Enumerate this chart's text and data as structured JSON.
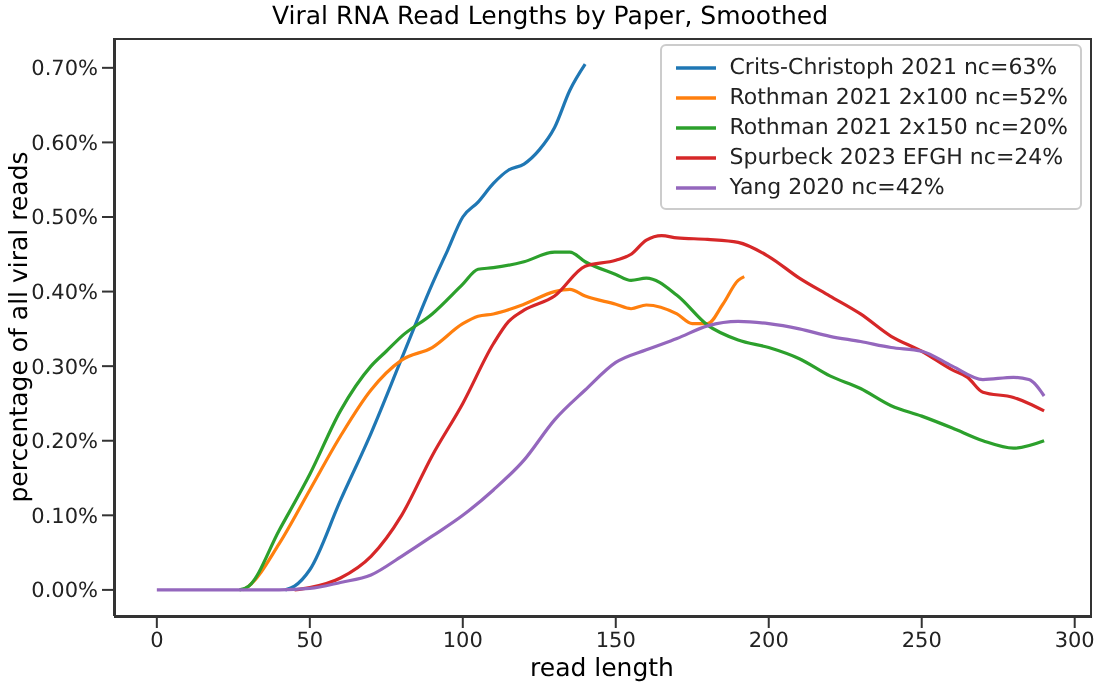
{
  "chart_data": {
    "type": "line",
    "title": "Viral RNA Read Lengths by Paper, Smoothed",
    "xlabel": "read length",
    "ylabel": "percentage of all viral reads",
    "xlim": [
      -14,
      305
    ],
    "xticks": [
      0,
      50,
      100,
      150,
      200,
      250,
      300
    ],
    "ylim": [
      -0.035,
      0.74
    ],
    "yticks": [
      {
        "value": 0,
        "label": "0.00%"
      },
      {
        "value": 0.1,
        "label": "0.10%"
      },
      {
        "value": 0.2,
        "label": "0.20%"
      },
      {
        "value": 0.3,
        "label": "0.30%"
      },
      {
        "value": 0.4,
        "label": "0.40%"
      },
      {
        "value": 0.5,
        "label": "0.50%"
      },
      {
        "value": 0.6,
        "label": "0.60%"
      },
      {
        "value": 0.7,
        "label": "0.70%"
      }
    ],
    "grid": false,
    "legend": "top right",
    "marker": "none",
    "line_style": "solid",
    "series": [
      {
        "name": "Crits-Christoph 2021 nc=63%",
        "color": "#1f77b4",
        "x": [
          42,
          45,
          50,
          60,
          70,
          80,
          90,
          95,
          100,
          105,
          110,
          115,
          120,
          125,
          130,
          135,
          140
        ],
        "values": [
          0,
          0.005,
          0.027,
          0.12,
          0.21,
          0.31,
          0.41,
          0.455,
          0.5,
          0.52,
          0.545,
          0.563,
          0.571,
          0.59,
          0.62,
          0.67,
          0.705
        ]
      },
      {
        "name": "Rothman 2021 2x100 nc=52%",
        "color": "#ff7f0e",
        "x": [
          28,
          30,
          40,
          50,
          60,
          70,
          80,
          90,
          100,
          105,
          110,
          120,
          130,
          135,
          140,
          150,
          155,
          160,
          170,
          175,
          180,
          185,
          190,
          192
        ],
        "values": [
          0,
          0.005,
          0.062,
          0.134,
          0.206,
          0.268,
          0.308,
          0.325,
          0.357,
          0.367,
          0.37,
          0.383,
          0.4,
          0.403,
          0.394,
          0.383,
          0.377,
          0.382,
          0.37,
          0.357,
          0.357,
          0.383,
          0.415,
          0.42
        ]
      },
      {
        "name": "Rothman 2021 2x150 nc=20%",
        "color": "#2ca02c",
        "x": [
          27,
          30,
          40,
          50,
          60,
          70,
          75,
          80,
          90,
          100,
          105,
          110,
          120,
          130,
          135,
          140,
          150,
          155,
          160,
          170,
          180,
          190,
          200,
          210,
          220,
          230,
          240,
          250,
          260,
          270,
          280,
          290
        ],
        "values": [
          0,
          0.005,
          0.08,
          0.155,
          0.24,
          0.3,
          0.32,
          0.34,
          0.37,
          0.41,
          0.43,
          0.432,
          0.44,
          0.453,
          0.453,
          0.44,
          0.423,
          0.415,
          0.418,
          0.395,
          0.355,
          0.335,
          0.325,
          0.31,
          0.287,
          0.27,
          0.247,
          0.233,
          0.217,
          0.2,
          0.19,
          0.2
        ]
      },
      {
        "name": "Spurbeck 2023 EFGH nc=24%",
        "color": "#d62728",
        "x": [
          45,
          50,
          60,
          70,
          80,
          90,
          100,
          110,
          115,
          120,
          130,
          140,
          150,
          155,
          160,
          165,
          170,
          180,
          190,
          200,
          210,
          220,
          230,
          240,
          250,
          260,
          265,
          270,
          280,
          285,
          290
        ],
        "values": [
          0,
          0.003,
          0.016,
          0.045,
          0.1,
          0.18,
          0.25,
          0.33,
          0.36,
          0.375,
          0.394,
          0.434,
          0.442,
          0.45,
          0.469,
          0.475,
          0.472,
          0.47,
          0.466,
          0.447,
          0.418,
          0.394,
          0.37,
          0.34,
          0.32,
          0.295,
          0.285,
          0.265,
          0.258,
          0.25,
          0.24
        ]
      },
      {
        "name": "Yang 2020 nc=42%",
        "color": "#9467bd",
        "x": [
          0,
          40,
          50,
          60,
          70,
          80,
          90,
          100,
          110,
          120,
          130,
          140,
          150,
          160,
          170,
          180,
          190,
          200,
          210,
          220,
          230,
          240,
          250,
          260,
          270,
          280,
          285,
          290
        ],
        "values": [
          0,
          0,
          0.002,
          0.01,
          0.02,
          0.045,
          0.072,
          0.1,
          0.134,
          0.174,
          0.228,
          0.268,
          0.305,
          0.322,
          0.337,
          0.354,
          0.36,
          0.357,
          0.35,
          0.34,
          0.333,
          0.325,
          0.32,
          0.3,
          0.282,
          0.285,
          0.282,
          0.26
        ]
      }
    ]
  }
}
